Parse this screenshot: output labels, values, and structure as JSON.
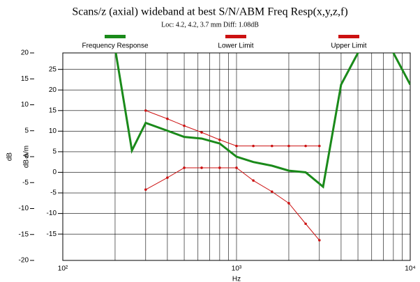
{
  "chart_data": {
    "type": "line",
    "title": "Scans/z (axial) wideband at best S/N/ABM Freq Resp(x,y,z,f)",
    "subtitle": "Loc: 4.2, 4.2, 3.7 mm Diff: 1.08dB",
    "xlabel": "Hz",
    "ylabel": "dB",
    "y2label": "dB A/m",
    "xscale": "log",
    "xlim": [
      100,
      10000
    ],
    "xticks": [
      {
        "value": 100,
        "label": "10²"
      },
      {
        "value": 1000,
        "label": "10³"
      },
      {
        "value": 10000,
        "label": "10⁴"
      }
    ],
    "ylim": [
      -20,
      20
    ],
    "yticks": [
      20,
      15,
      10,
      5,
      0,
      -5,
      -10,
      -15,
      -20
    ],
    "y2lim": [
      -21.4,
      29
    ],
    "y2ticks": [
      25,
      20,
      15,
      10,
      5,
      0,
      -5,
      -10,
      -15
    ],
    "grid": true,
    "series": [
      {
        "name": "Frequency Response",
        "color": "#1a8a1a",
        "axis": "y2",
        "markers": false,
        "x": [
          200,
          250,
          300,
          400,
          500,
          630,
          800,
          1000,
          1250,
          1600,
          2000,
          2500,
          3150,
          4000,
          5000,
          6300,
          8000,
          10000
        ],
        "values": [
          30.1,
          5.3,
          12,
          10.1,
          8.6,
          8.2,
          7,
          3.8,
          2.5,
          1.6,
          0.4,
          0,
          -3.5,
          21.3,
          29,
          33,
          29,
          21.3
        ]
      },
      {
        "name": "Lower Limit",
        "color": "#cc1111",
        "axis": "y2",
        "markers": true,
        "x": [
          300,
          400,
          500,
          630,
          800,
          1000,
          1250,
          1600,
          2000,
          2500,
          3000
        ],
        "values": [
          -4.2,
          -1.3,
          1.1,
          1.1,
          1.1,
          1.1,
          -2,
          -4.7,
          -7.5,
          -12.5,
          -16.5
        ]
      },
      {
        "name": "Upper Limit",
        "color": "#cc1111",
        "axis": "y2",
        "markers": true,
        "x": [
          300,
          400,
          500,
          630,
          800,
          1000,
          1250,
          1600,
          2000,
          2500,
          3000
        ],
        "values": [
          15,
          13,
          11.3,
          9.7,
          7.9,
          6.4,
          6.4,
          6.4,
          6.4,
          6.4,
          6.4
        ]
      }
    ]
  }
}
